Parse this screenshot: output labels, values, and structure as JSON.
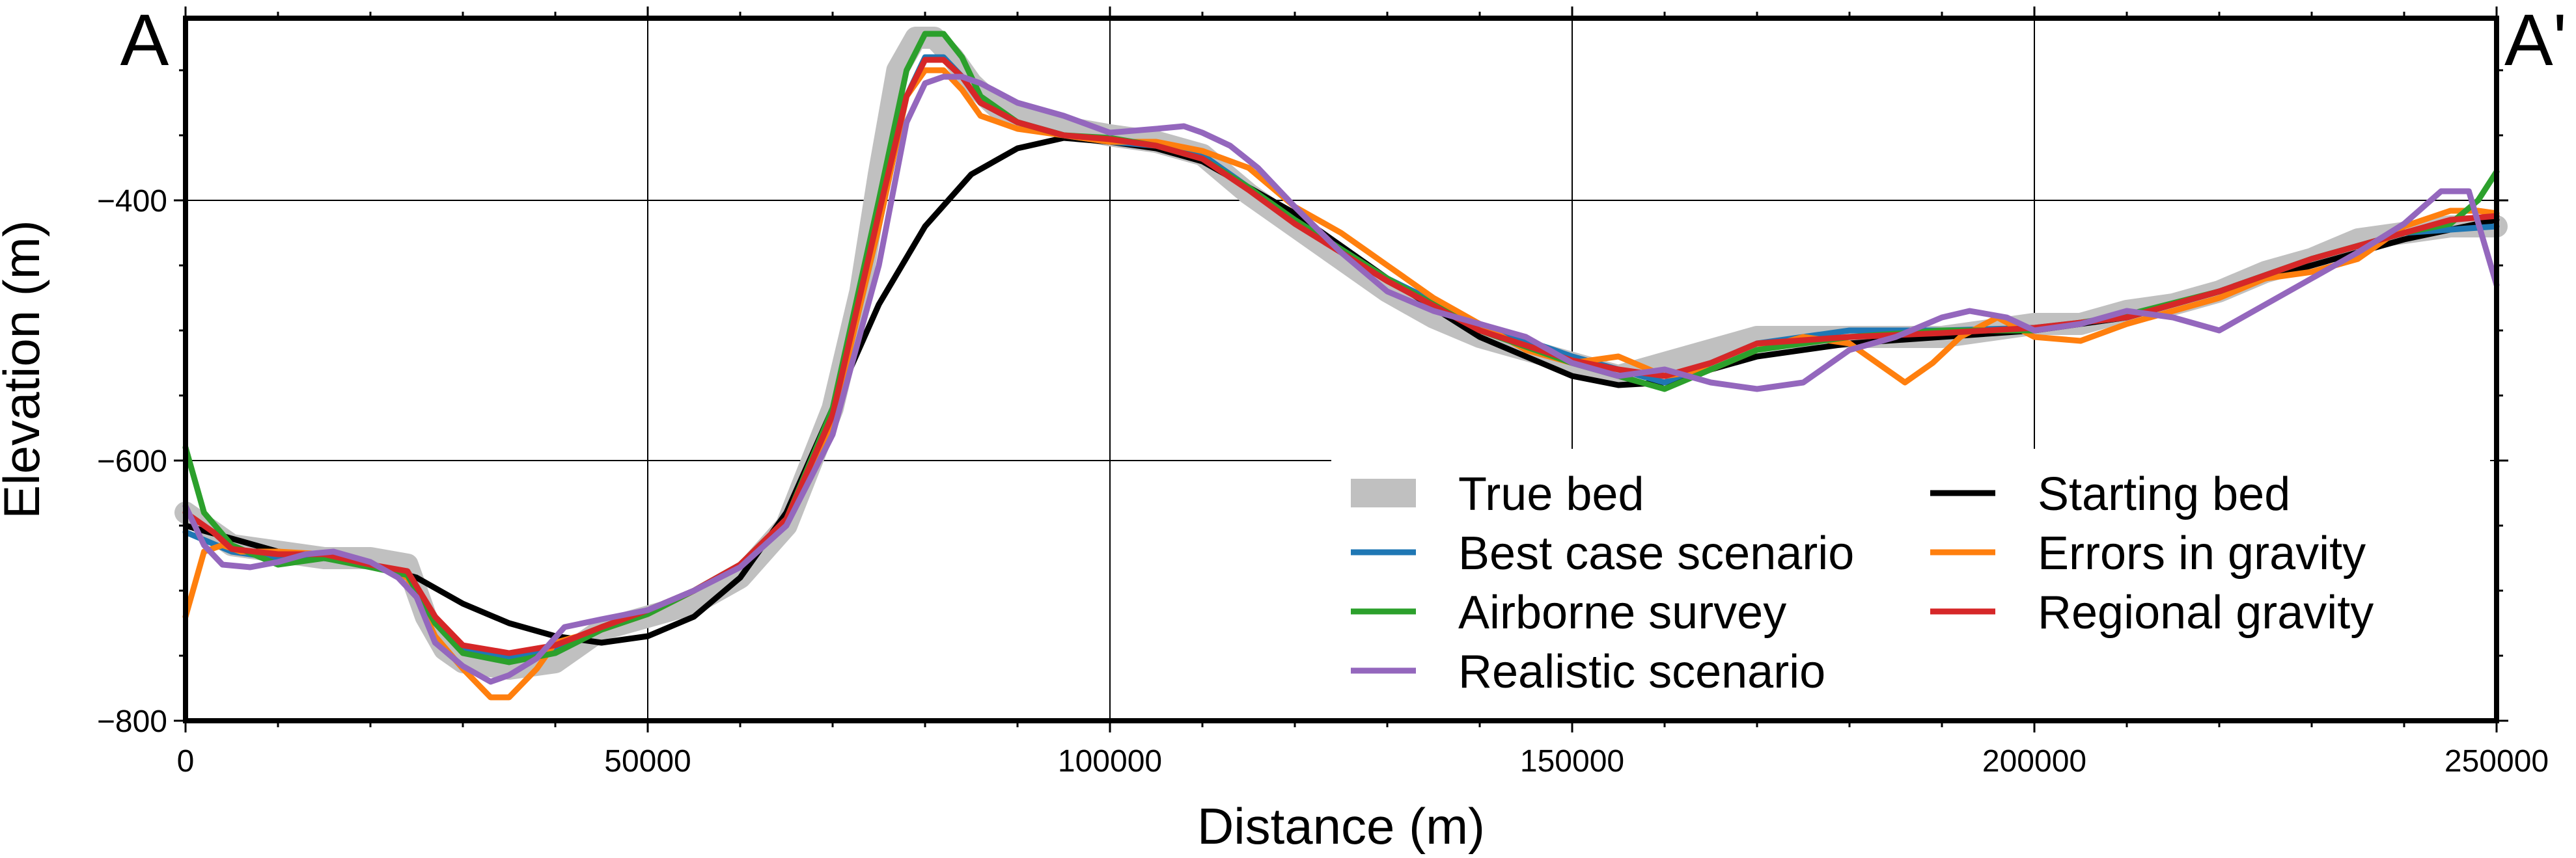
{
  "chart_data": {
    "type": "line",
    "title": "",
    "xlabel": "Distance (m)",
    "ylabel": "Elevation (m)",
    "xlim": [
      0,
      250000
    ],
    "ylim": [
      -800,
      -260
    ],
    "xticks": [
      0,
      50000,
      100000,
      150000,
      200000,
      250000
    ],
    "xtick_labels": [
      "0",
      "50000",
      "100000",
      "150000",
      "200000",
      "250000"
    ],
    "yticks": [
      -800,
      -600,
      -400
    ],
    "ytick_labels": [
      "−800",
      "−600",
      "−400"
    ],
    "grid": true,
    "corner_labels": {
      "left": "A",
      "right": "A'"
    },
    "legend_position": "lower-right",
    "series": [
      {
        "name": "True bed",
        "color": "#c0c0c0",
        "style": "thick",
        "x": [
          0,
          5000,
          10000,
          15000,
          20000,
          24000,
          26000,
          28000,
          30000,
          35000,
          40000,
          45000,
          50000,
          55000,
          60000,
          65000,
          70000,
          73000,
          75000,
          77000,
          79000,
          81000,
          83000,
          85000,
          88000,
          92000,
          100000,
          105000,
          110000,
          115000,
          120000,
          125000,
          130000,
          135000,
          140000,
          145000,
          150000,
          155000,
          160000,
          165000,
          170000,
          175000,
          180000,
          185000,
          190000,
          195000,
          200000,
          205000,
          210000,
          215000,
          220000,
          225000,
          230000,
          235000,
          240000,
          245000,
          250000
        ],
        "y": [
          -640,
          -665,
          -670,
          -675,
          -675,
          -680,
          -720,
          -745,
          -755,
          -760,
          -755,
          -730,
          -720,
          -710,
          -690,
          -650,
          -560,
          -470,
          -380,
          -300,
          -275,
          -275,
          -290,
          -310,
          -330,
          -340,
          -350,
          -355,
          -365,
          -395,
          -420,
          -445,
          -470,
          -490,
          -505,
          -515,
          -525,
          -535,
          -525,
          -515,
          -505,
          -505,
          -505,
          -505,
          -505,
          -500,
          -495,
          -495,
          -485,
          -480,
          -470,
          -455,
          -445,
          -430,
          -425,
          -420,
          -420
        ]
      },
      {
        "name": "Starting bed",
        "color": "#000000",
        "x": [
          0,
          10000,
          20000,
          25000,
          30000,
          35000,
          40000,
          45000,
          50000,
          55000,
          60000,
          65000,
          70000,
          75000,
          80000,
          85000,
          90000,
          95000,
          100000,
          105000,
          110000,
          120000,
          130000,
          140000,
          150000,
          155000,
          160000,
          170000,
          180000,
          190000,
          200000,
          210000,
          220000,
          230000,
          240000,
          250000
        ],
        "y": [
          -650,
          -670,
          -680,
          -690,
          -710,
          -725,
          -735,
          -740,
          -735,
          -720,
          -690,
          -640,
          -560,
          -480,
          -420,
          -380,
          -360,
          -352,
          -355,
          -360,
          -370,
          -410,
          -460,
          -505,
          -535,
          -542,
          -540,
          -520,
          -510,
          -505,
          -500,
          -490,
          -470,
          -450,
          -430,
          -415
        ]
      },
      {
        "name": "Best case scenario",
        "color": "#1f77b4",
        "x": [
          0,
          5000,
          10000,
          15000,
          20000,
          24000,
          27000,
          30000,
          35000,
          40000,
          45000,
          50000,
          55000,
          60000,
          65000,
          70000,
          75000,
          78000,
          80000,
          82000,
          84000,
          86000,
          90000,
          95000,
          100000,
          105000,
          110000,
          115000,
          120000,
          130000,
          140000,
          150000,
          155000,
          160000,
          170000,
          180000,
          190000,
          200000,
          210000,
          220000,
          230000,
          240000,
          250000
        ],
        "y": [
          -655,
          -670,
          -675,
          -675,
          -680,
          -690,
          -725,
          -745,
          -752,
          -745,
          -728,
          -715,
          -700,
          -680,
          -645,
          -570,
          -420,
          -320,
          -290,
          -290,
          -305,
          -325,
          -340,
          -350,
          -355,
          -358,
          -365,
          -390,
          -415,
          -460,
          -495,
          -520,
          -530,
          -540,
          -510,
          -500,
          -500,
          -498,
          -490,
          -470,
          -445,
          -425,
          -420
        ]
      },
      {
        "name": "Errors in gravity",
        "color": "#ff7f0e",
        "x": [
          0,
          2000,
          4000,
          6000,
          10000,
          15000,
          20000,
          24000,
          27000,
          30000,
          33000,
          35000,
          38000,
          40000,
          45000,
          50000,
          55000,
          60000,
          65000,
          70000,
          75000,
          78000,
          80000,
          82000,
          84000,
          86000,
          90000,
          95000,
          100000,
          105000,
          110000,
          115000,
          120000,
          125000,
          130000,
          135000,
          140000,
          145000,
          150000,
          155000,
          160000,
          165000,
          170000,
          175000,
          180000,
          183000,
          186000,
          189000,
          192000,
          196000,
          200000,
          205000,
          210000,
          215000,
          220000,
          225000,
          230000,
          235000,
          240000,
          245000,
          248000,
          250000
        ],
        "y": [
          -720,
          -670,
          -665,
          -670,
          -670,
          -672,
          -680,
          -690,
          -735,
          -760,
          -782,
          -782,
          -760,
          -740,
          -730,
          -718,
          -700,
          -680,
          -645,
          -570,
          -420,
          -320,
          -300,
          -300,
          -315,
          -335,
          -345,
          -350,
          -355,
          -355,
          -362,
          -375,
          -405,
          -425,
          -450,
          -475,
          -495,
          -515,
          -525,
          -520,
          -535,
          -530,
          -515,
          -505,
          -510,
          -525,
          -540,
          -525,
          -505,
          -490,
          -505,
          -508,
          -495,
          -485,
          -475,
          -460,
          -455,
          -445,
          -420,
          -408,
          -408,
          -410
        ]
      },
      {
        "name": "Airborne survey",
        "color": "#2ca02c",
        "x": [
          0,
          2000,
          5000,
          10000,
          15000,
          20000,
          24000,
          27000,
          30000,
          35000,
          40000,
          45000,
          50000,
          55000,
          60000,
          65000,
          70000,
          75000,
          78000,
          80000,
          82000,
          84000,
          86000,
          90000,
          95000,
          100000,
          105000,
          110000,
          115000,
          120000,
          130000,
          140000,
          150000,
          155000,
          160000,
          165000,
          170000,
          180000,
          190000,
          200000,
          210000,
          220000,
          230000,
          240000,
          245000,
          248000,
          250000
        ],
        "y": [
          -590,
          -640,
          -665,
          -680,
          -675,
          -682,
          -688,
          -725,
          -748,
          -755,
          -748,
          -730,
          -718,
          -700,
          -680,
          -645,
          -560,
          -400,
          -300,
          -272,
          -272,
          -290,
          -320,
          -340,
          -350,
          -352,
          -358,
          -368,
          -390,
          -415,
          -460,
          -500,
          -525,
          -535,
          -545,
          -530,
          -515,
          -505,
          -500,
          -500,
          -488,
          -470,
          -445,
          -425,
          -418,
          -400,
          -378
        ]
      },
      {
        "name": "Regional gravity",
        "color": "#d62728",
        "x": [
          0,
          3000,
          5000,
          10000,
          15000,
          20000,
          24000,
          27000,
          30000,
          35000,
          40000,
          45000,
          50000,
          55000,
          60000,
          65000,
          70000,
          75000,
          78000,
          80000,
          82000,
          84000,
          86000,
          90000,
          95000,
          100000,
          105000,
          110000,
          115000,
          120000,
          130000,
          140000,
          150000,
          155000,
          160000,
          165000,
          170000,
          180000,
          190000,
          200000,
          210000,
          220000,
          230000,
          240000,
          245000,
          250000
        ],
        "y": [
          -640,
          -655,
          -668,
          -672,
          -672,
          -680,
          -685,
          -720,
          -742,
          -748,
          -742,
          -728,
          -715,
          -700,
          -680,
          -645,
          -565,
          -410,
          -320,
          -292,
          -292,
          -305,
          -325,
          -340,
          -350,
          -353,
          -358,
          -368,
          -392,
          -418,
          -462,
          -500,
          -523,
          -530,
          -535,
          -525,
          -510,
          -505,
          -502,
          -498,
          -490,
          -470,
          -445,
          -425,
          -415,
          -412
        ]
      },
      {
        "name": "Realistic scenario",
        "color": "#9467bd",
        "x": [
          0,
          2000,
          4000,
          7000,
          10000,
          13000,
          16000,
          20000,
          23000,
          25000,
          27000,
          30000,
          33000,
          35000,
          38000,
          41000,
          45000,
          50000,
          55000,
          60000,
          65000,
          70000,
          75000,
          78000,
          80000,
          82000,
          84000,
          86000,
          90000,
          95000,
          100000,
          105000,
          108000,
          110000,
          113000,
          116000,
          120000,
          125000,
          130000,
          135000,
          140000,
          145000,
          150000,
          155000,
          160000,
          165000,
          170000,
          175000,
          180000,
          185000,
          190000,
          193000,
          197000,
          200000,
          205000,
          210000,
          215000,
          220000,
          225000,
          230000,
          235000,
          240000,
          244000,
          247000,
          250000
        ],
        "y": [
          -635,
          -665,
          -680,
          -682,
          -678,
          -672,
          -670,
          -678,
          -690,
          -705,
          -740,
          -758,
          -770,
          -765,
          -752,
          -728,
          -722,
          -715,
          -700,
          -682,
          -650,
          -580,
          -450,
          -340,
          -310,
          -305,
          -305,
          -310,
          -325,
          -335,
          -348,
          -345,
          -343,
          -348,
          -358,
          -375,
          -405,
          -440,
          -470,
          -485,
          -495,
          -505,
          -525,
          -535,
          -530,
          -540,
          -545,
          -540,
          -515,
          -505,
          -490,
          -485,
          -490,
          -500,
          -495,
          -485,
          -490,
          -500,
          -480,
          -460,
          -440,
          -418,
          -393,
          -393,
          -465
        ]
      }
    ]
  }
}
